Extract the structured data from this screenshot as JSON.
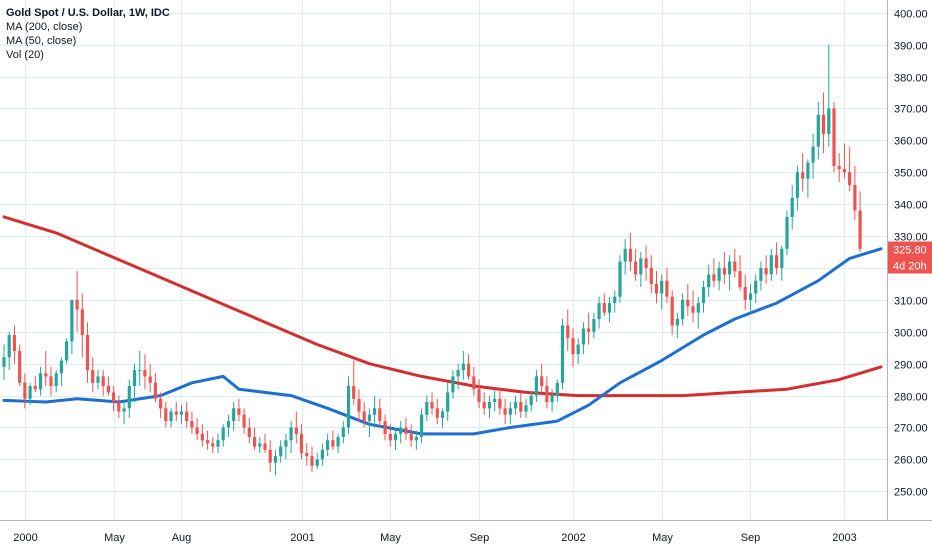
{
  "chart_data": {
    "type": "candlestick",
    "title": "Gold Spot / U.S. Dollar, 1W, IDC",
    "indicators": [
      "MA (200, close)",
      "MA (50, close)",
      "Vol (20)"
    ],
    "y_ticks": [
      "250.00",
      "260.00",
      "270.00",
      "280.00",
      "290.00",
      "300.00",
      "310.00",
      "320.00",
      "330.00",
      "340.00",
      "350.00",
      "360.00",
      "370.00",
      "380.00",
      "390.00",
      "400.00"
    ],
    "ylim": [
      241,
      404
    ],
    "x_ticks": [
      {
        "label": "2000",
        "week": 4
      },
      {
        "label": "May",
        "week": 21
      },
      {
        "label": "Aug",
        "week": 34
      },
      {
        "label": "2001",
        "week": 57
      },
      {
        "label": "May",
        "week": 74
      },
      {
        "label": "Sep",
        "week": 91
      },
      {
        "label": "2002",
        "week": 109
      },
      {
        "label": "May",
        "week": 126
      },
      {
        "label": "Sep",
        "week": 143
      },
      {
        "label": "2003",
        "week": 161
      }
    ],
    "price_label": {
      "value": "325.80",
      "countdown": "4d 20h",
      "color": "#ef5350"
    },
    "colors": {
      "up": "#26a69a",
      "down": "#ef5350",
      "ma200": "#d32f2f",
      "ma50": "#1e6fd0",
      "grid": "#e1ecf2"
    },
    "ma200": [
      [
        0,
        336
      ],
      [
        10,
        331
      ],
      [
        20,
        324
      ],
      [
        30,
        317
      ],
      [
        40,
        310
      ],
      [
        50,
        303
      ],
      [
        60,
        296
      ],
      [
        70,
        290
      ],
      [
        80,
        286
      ],
      [
        90,
        283
      ],
      [
        100,
        281
      ],
      [
        110,
        280
      ],
      [
        120,
        280
      ],
      [
        130,
        280
      ],
      [
        140,
        281
      ],
      [
        150,
        282
      ],
      [
        160,
        285
      ],
      [
        168,
        289
      ]
    ],
    "ma50": [
      [
        0,
        278.5
      ],
      [
        8,
        278
      ],
      [
        14,
        279
      ],
      [
        22,
        278
      ],
      [
        30,
        280
      ],
      [
        36,
        284
      ],
      [
        42,
        286
      ],
      [
        45,
        282
      ],
      [
        55,
        280
      ],
      [
        62,
        276
      ],
      [
        70,
        271
      ],
      [
        80,
        268
      ],
      [
        90,
        268
      ],
      [
        97,
        270
      ],
      [
        106,
        272
      ],
      [
        112,
        277
      ],
      [
        118,
        284
      ],
      [
        126,
        291
      ],
      [
        134,
        299
      ],
      [
        140,
        304
      ],
      [
        148,
        309
      ],
      [
        156,
        316
      ],
      [
        162,
        323
      ],
      [
        168,
        326
      ]
    ],
    "candles": [
      [
        289,
        296,
        285,
        292
      ],
      [
        292,
        300,
        288,
        299
      ],
      [
        299,
        302,
        290,
        294
      ],
      [
        294,
        296,
        283,
        284
      ],
      [
        284,
        287,
        276,
        279
      ],
      [
        279,
        284,
        277,
        283
      ],
      [
        283,
        286,
        281,
        282
      ],
      [
        282,
        289,
        280,
        287
      ],
      [
        287,
        294,
        283,
        286
      ],
      [
        286,
        289,
        280,
        283
      ],
      [
        283,
        288,
        281,
        287
      ],
      [
        287,
        292,
        283,
        291
      ],
      [
        291,
        298,
        290,
        297
      ],
      [
        297,
        310,
        293,
        310
      ],
      [
        310,
        319,
        300,
        307
      ],
      [
        307,
        312,
        292,
        299
      ],
      [
        299,
        303,
        284,
        288
      ],
      [
        288,
        292,
        281,
        284
      ],
      [
        284,
        288,
        282,
        286
      ],
      [
        286,
        288,
        280,
        283
      ],
      [
        283,
        286,
        280,
        281
      ],
      [
        281,
        283,
        275,
        278
      ],
      [
        278,
        280,
        273,
        275
      ],
      [
        275,
        278,
        271,
        276
      ],
      [
        276,
        285,
        273,
        283
      ],
      [
        283,
        290,
        278,
        288
      ],
      [
        288,
        294,
        283,
        288
      ],
      [
        288,
        293,
        282,
        286
      ],
      [
        286,
        290,
        281,
        284
      ],
      [
        284,
        287,
        278,
        279
      ],
      [
        279,
        281,
        273,
        276
      ],
      [
        276,
        278,
        270,
        272
      ],
      [
        272,
        276,
        270,
        275
      ],
      [
        275,
        278,
        272,
        274
      ],
      [
        274,
        277,
        271,
        275
      ],
      [
        275,
        278,
        270,
        272
      ],
      [
        272,
        275,
        268,
        270
      ],
      [
        270,
        273,
        266,
        268
      ],
      [
        268,
        271,
        264,
        266
      ],
      [
        266,
        269,
        263,
        265
      ],
      [
        265,
        267,
        262,
        264
      ],
      [
        264,
        268,
        262,
        266
      ],
      [
        266,
        271,
        264,
        270
      ],
      [
        270,
        274,
        267,
        272
      ],
      [
        272,
        278,
        269,
        276
      ],
      [
        276,
        279,
        272,
        274
      ],
      [
        274,
        276,
        268,
        270
      ],
      [
        270,
        273,
        265,
        267
      ],
      [
        267,
        270,
        263,
        264
      ],
      [
        264,
        267,
        262,
        265
      ],
      [
        265,
        268,
        262,
        263
      ],
      [
        263,
        266,
        256,
        259
      ],
      [
        259,
        263,
        255,
        261
      ],
      [
        261,
        266,
        259,
        264
      ],
      [
        264,
        268,
        260,
        266
      ],
      [
        266,
        272,
        262,
        270
      ],
      [
        270,
        275,
        265,
        268
      ],
      [
        268,
        271,
        260,
        262
      ],
      [
        262,
        265,
        258,
        261
      ],
      [
        261,
        264,
        256,
        258
      ],
      [
        258,
        262,
        257,
        260
      ],
      [
        260,
        265,
        258,
        263
      ],
      [
        263,
        268,
        261,
        266
      ],
      [
        266,
        269,
        263,
        264
      ],
      [
        264,
        268,
        262,
        267
      ],
      [
        267,
        272,
        265,
        270
      ],
      [
        270,
        286,
        268,
        283
      ],
      [
        283,
        291,
        277,
        279
      ],
      [
        279,
        282,
        272,
        275
      ],
      [
        275,
        278,
        270,
        272
      ],
      [
        272,
        276,
        267,
        274
      ],
      [
        274,
        280,
        270,
        276
      ],
      [
        276,
        279,
        270,
        272
      ],
      [
        272,
        274,
        266,
        268
      ],
      [
        268,
        271,
        264,
        266
      ],
      [
        266,
        270,
        263,
        268
      ],
      [
        268,
        272,
        265,
        270
      ],
      [
        270,
        273,
        266,
        268
      ],
      [
        268,
        271,
        264,
        266
      ],
      [
        266,
        269,
        263,
        267
      ],
      [
        267,
        276,
        265,
        274
      ],
      [
        274,
        280,
        272,
        278
      ],
      [
        278,
        281,
        274,
        276
      ],
      [
        276,
        279,
        271,
        273
      ],
      [
        273,
        276,
        270,
        275
      ],
      [
        275,
        284,
        272,
        281
      ],
      [
        281,
        288,
        279,
        286
      ],
      [
        286,
        290,
        282,
        288
      ],
      [
        288,
        294,
        285,
        290
      ],
      [
        290,
        293,
        285,
        286
      ],
      [
        286,
        289,
        280,
        282
      ],
      [
        282,
        285,
        276,
        278
      ],
      [
        278,
        281,
        274,
        276
      ],
      [
        276,
        280,
        273,
        278
      ],
      [
        278,
        282,
        275,
        279
      ],
      [
        279,
        282,
        274,
        276
      ],
      [
        276,
        279,
        271,
        274
      ],
      [
        274,
        278,
        271,
        276
      ],
      [
        276,
        280,
        274,
        278
      ],
      [
        278,
        281,
        273,
        275
      ],
      [
        275,
        279,
        273,
        277
      ],
      [
        277,
        281,
        275,
        280
      ],
      [
        280,
        288,
        278,
        286
      ],
      [
        286,
        290,
        281,
        283
      ],
      [
        283,
        286,
        276,
        278
      ],
      [
        278,
        282,
        275,
        280
      ],
      [
        280,
        285,
        278,
        284
      ],
      [
        284,
        304,
        282,
        302
      ],
      [
        302,
        307,
        294,
        298
      ],
      [
        298,
        301,
        289,
        293
      ],
      [
        293,
        298,
        290,
        296
      ],
      [
        296,
        303,
        293,
        301
      ],
      [
        301,
        306,
        296,
        300
      ],
      [
        300,
        306,
        298,
        304
      ],
      [
        304,
        311,
        301,
        309
      ],
      [
        309,
        312,
        305,
        306
      ],
      [
        306,
        311,
        303,
        309
      ],
      [
        309,
        313,
        306,
        311
      ],
      [
        311,
        324,
        309,
        322
      ],
      [
        322,
        329,
        318,
        326
      ],
      [
        326,
        331,
        319,
        322
      ],
      [
        322,
        326,
        316,
        318
      ],
      [
        318,
        325,
        314,
        323
      ],
      [
        323,
        327,
        316,
        320
      ],
      [
        320,
        324,
        312,
        315
      ],
      [
        315,
        319,
        309,
        312
      ],
      [
        312,
        318,
        307,
        316
      ],
      [
        316,
        320,
        309,
        311
      ],
      [
        311,
        313,
        299,
        302
      ],
      [
        302,
        306,
        298,
        304
      ],
      [
        304,
        312,
        302,
        310
      ],
      [
        310,
        315,
        305,
        308
      ],
      [
        308,
        313,
        303,
        306
      ],
      [
        306,
        311,
        301,
        309
      ],
      [
        309,
        316,
        306,
        314
      ],
      [
        314,
        321,
        311,
        318
      ],
      [
        318,
        323,
        314,
        316
      ],
      [
        316,
        322,
        313,
        320
      ],
      [
        320,
        325,
        315,
        318
      ],
      [
        318,
        324,
        313,
        322
      ],
      [
        322,
        326,
        317,
        319
      ],
      [
        319,
        324,
        313,
        314
      ],
      [
        314,
        318,
        307,
        310
      ],
      [
        310,
        315,
        306,
        312
      ],
      [
        312,
        318,
        309,
        316
      ],
      [
        316,
        322,
        313,
        320
      ],
      [
        320,
        324,
        315,
        318
      ],
      [
        318,
        326,
        316,
        324
      ],
      [
        324,
        328,
        318,
        320
      ],
      [
        320,
        327,
        316,
        326
      ],
      [
        326,
        338,
        324,
        336
      ],
      [
        336,
        346,
        332,
        342
      ],
      [
        342,
        352,
        338,
        350
      ],
      [
        350,
        356,
        344,
        348
      ],
      [
        348,
        354,
        342,
        353
      ],
      [
        353,
        362,
        348,
        358
      ],
      [
        358,
        372,
        354,
        368
      ],
      [
        368,
        375,
        356,
        362
      ],
      [
        362,
        390,
        358,
        370
      ],
      [
        370,
        372,
        350,
        352
      ],
      [
        352,
        356,
        347,
        351
      ],
      [
        351,
        359,
        348,
        350
      ],
      [
        350,
        358,
        344,
        346
      ],
      [
        346,
        352,
        335,
        338
      ],
      [
        338,
        344,
        325,
        326
      ]
    ]
  }
}
